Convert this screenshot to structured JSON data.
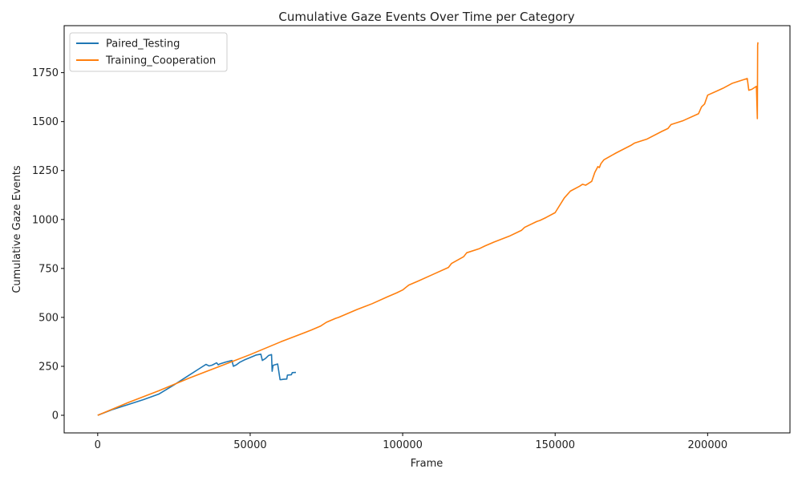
{
  "chart_data": {
    "type": "line",
    "title": "Cumulative Gaze Events Over Time per Category",
    "xlabel": "Frame",
    "ylabel": "Cumulative Gaze Events",
    "xlim": [
      -11000,
      227000
    ],
    "ylim": [
      -90,
      1990
    ],
    "xticks": [
      0,
      50000,
      100000,
      150000,
      200000
    ],
    "yticks": [
      0,
      250,
      500,
      750,
      1000,
      1250,
      1500,
      1750
    ],
    "xtick_labels": [
      "0",
      "50000",
      "100000",
      "150000",
      "200000"
    ],
    "ytick_labels": [
      "0",
      "250",
      "500",
      "750",
      "1000",
      "1250",
      "1500",
      "1750"
    ],
    "grid": false,
    "legend_position": "top-left",
    "series": [
      {
        "name": "Paired_Testing",
        "color": "#1f77b4",
        "x": [
          0,
          5000,
          10000,
          15000,
          20000,
          25000,
          30000,
          33000,
          35500,
          36500,
          37500,
          39000,
          39500,
          40000,
          42000,
          44000,
          44500,
          45500,
          46500,
          48000,
          50000,
          52000,
          53500,
          54000,
          55000,
          56000,
          57000,
          57200,
          57500,
          59000,
          59800,
          60100,
          61000,
          62000,
          62200,
          63500,
          63800,
          65000
        ],
        "y": [
          0,
          30,
          55,
          80,
          108,
          155,
          205,
          235,
          260,
          252,
          256,
          268,
          258,
          262,
          272,
          280,
          250,
          258,
          270,
          282,
          295,
          308,
          312,
          280,
          290,
          305,
          310,
          225,
          255,
          262,
          182,
          182,
          184,
          185,
          205,
          207,
          218,
          219
        ]
      },
      {
        "name": "Training_Cooperation",
        "color": "#ff7f0e",
        "x": [
          0,
          10000,
          20000,
          30000,
          40000,
          50000,
          60000,
          70000,
          73000,
          75000,
          78000,
          79000,
          85000,
          90000,
          95000,
          98000,
          100000,
          102000,
          105000,
          110000,
          115000,
          116000,
          120000,
          121000,
          125000,
          127000,
          130000,
          135000,
          139000,
          140000,
          144000,
          145000,
          147000,
          150000,
          151000,
          153000,
          155000,
          158000,
          159000,
          160000,
          162000,
          163000,
          164000,
          164500,
          165000,
          166000,
          170000,
          175000,
          176000,
          180000,
          185000,
          187000,
          188000,
          192000,
          197000,
          198000,
          199000,
          200000,
          205000,
          208000,
          212000,
          213000,
          213500,
          214500,
          216000,
          216300,
          216400,
          216500
        ],
        "y": [
          0,
          65,
          125,
          190,
          250,
          310,
          375,
          435,
          455,
          475,
          495,
          500,
          540,
          570,
          605,
          625,
          640,
          665,
          685,
          720,
          755,
          775,
          810,
          830,
          850,
          865,
          885,
          915,
          945,
          960,
          990,
          995,
          1010,
          1035,
          1060,
          1110,
          1145,
          1170,
          1180,
          1175,
          1195,
          1240,
          1270,
          1265,
          1285,
          1305,
          1340,
          1380,
          1390,
          1410,
          1450,
          1465,
          1485,
          1505,
          1540,
          1575,
          1590,
          1635,
          1670,
          1695,
          1715,
          1720,
          1660,
          1665,
          1680,
          1515,
          1890,
          1905
        ]
      }
    ]
  }
}
